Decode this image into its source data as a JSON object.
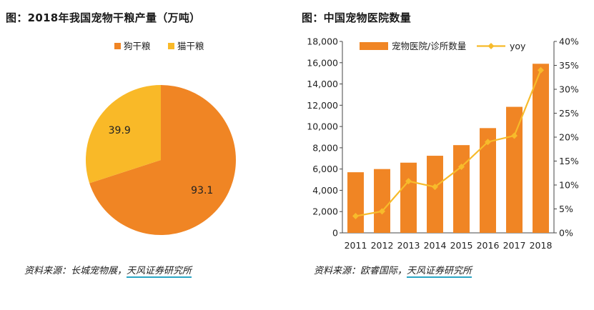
{
  "left": {
    "title": "图：2018年我国宠物干粮产量（万吨）",
    "source_prefix": "资料来源：长城宠物展，",
    "source_highlight": "天风证券研究所"
  },
  "right": {
    "title": "图：中国宠物医院数量",
    "source_prefix": "资料来源：欧睿国际，",
    "source_highlight": "天风证券研究所"
  },
  "colors": {
    "orange": "#f08524",
    "yellow": "#f9b928",
    "line": "#f7bb2b"
  },
  "chart_data": [
    {
      "type": "pie",
      "title": "图：2018年我国宠物干粮产量（万吨）",
      "legend_position": "top",
      "slices": [
        {
          "label": "狗干粮",
          "value": 93.1,
          "color": "#f08524"
        },
        {
          "label": "猫干粮",
          "value": 39.9,
          "color": "#f9b928"
        }
      ]
    },
    {
      "type": "bar",
      "title": "图：中国宠物医院数量",
      "categories": [
        "2011",
        "2012",
        "2013",
        "2014",
        "2015",
        "2016",
        "2017",
        "2018"
      ],
      "series": [
        {
          "name": "宠物医院/诊所数量",
          "type": "bar",
          "axis": "left",
          "color": "#f08524",
          "values": [
            5700,
            6000,
            6600,
            7250,
            8250,
            9850,
            11850,
            15900
          ]
        },
        {
          "name": "yoy",
          "type": "line",
          "axis": "right",
          "color": "#f7bb2b",
          "values": [
            3.5,
            4.5,
            10.8,
            9.6,
            13.8,
            19.0,
            20.3,
            34.0
          ]
        }
      ],
      "ylim_left": [
        0,
        18000
      ],
      "ylim_right": [
        0,
        40
      ],
      "yticks_left": [
        "0",
        "2,000",
        "4,000",
        "6,000",
        "8,000",
        "10,000",
        "12,000",
        "14,000",
        "16,000",
        "18,000"
      ],
      "yticks_right": [
        "0%",
        "5%",
        "10%",
        "15%",
        "20%",
        "25%",
        "30%",
        "35%",
        "40%"
      ],
      "legend_position": "top",
      "grid": false
    }
  ]
}
